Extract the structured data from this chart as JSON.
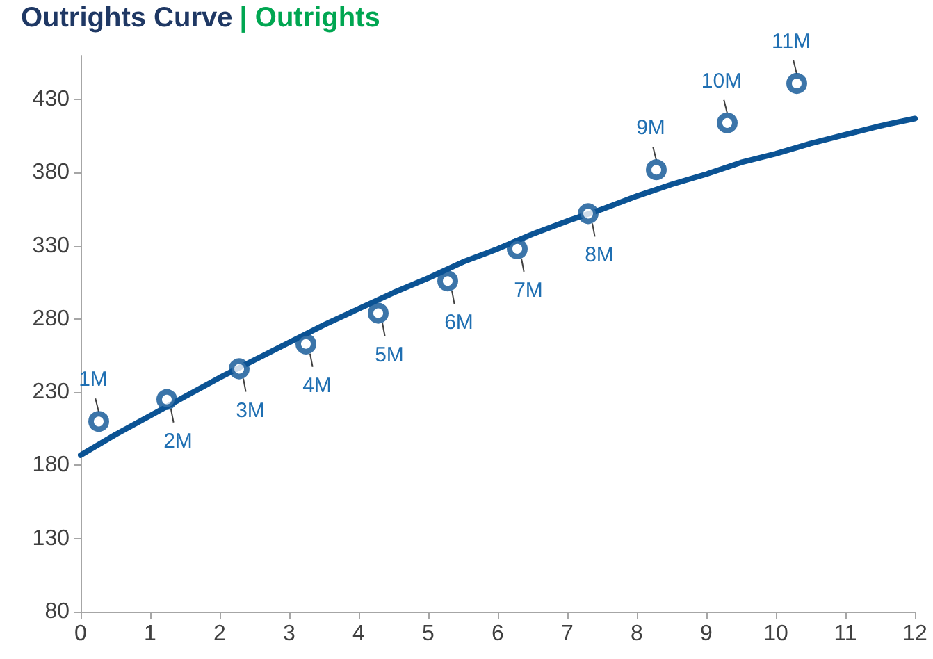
{
  "chart_data": {
    "type": "scatter",
    "title": "Outrights Curve",
    "subtitle": "| Outrights",
    "xlim": [
      0,
      12
    ],
    "xticks": [
      0,
      1,
      2,
      3,
      4,
      5,
      6,
      7,
      8,
      9,
      10,
      11,
      12
    ],
    "ylim": [
      80,
      460
    ],
    "yticks": [
      80,
      130,
      180,
      230,
      280,
      330,
      380,
      430
    ],
    "grid": false,
    "series": [
      {
        "type": "line",
        "color": "#0b5394",
        "marker": "none",
        "line_style": "solid",
        "x": [
          0,
          0.5,
          1,
          1.5,
          2,
          2.5,
          3,
          3.5,
          4,
          4.5,
          5,
          5.5,
          6,
          6.5,
          7,
          7.5,
          8,
          8.5,
          9,
          9.5,
          10,
          10.5,
          11,
          11.5,
          12
        ],
        "values": [
          187,
          201,
          214,
          227,
          240,
          252,
          264,
          276,
          287,
          298,
          308,
          319,
          328,
          338,
          347,
          355,
          364,
          372,
          379,
          387,
          393,
          400,
          406,
          412,
          417
        ]
      },
      {
        "color": "#0b5394",
        "marker": "circle",
        "x": [
          0.26,
          1.24,
          2.28,
          3.24,
          4.28,
          5.28,
          6.28,
          7.3,
          8.28,
          9.3,
          10.3
        ],
        "values": [
          210,
          225,
          246,
          263,
          284,
          306,
          328,
          352,
          382,
          414,
          441
        ]
      }
    ],
    "annotations": [
      {
        "text": "1M",
        "x": 0.26,
        "y": 210
      },
      {
        "text": "2M",
        "x": 1.24,
        "y": 225
      },
      {
        "text": "3M",
        "x": 2.28,
        "y": 246
      },
      {
        "text": "4M",
        "x": 3.24,
        "y": 263
      },
      {
        "text": "5M",
        "x": 4.28,
        "y": 284
      },
      {
        "text": "6M",
        "x": 5.28,
        "y": 306
      },
      {
        "text": "7M",
        "x": 6.28,
        "y": 328
      },
      {
        "text": "8M",
        "x": 7.3,
        "y": 352
      },
      {
        "text": "9M",
        "x": 8.28,
        "y": 382
      },
      {
        "text": "10M",
        "x": 9.3,
        "y": 414
      },
      {
        "text": "11M",
        "x": 10.3,
        "y": 441
      }
    ]
  }
}
